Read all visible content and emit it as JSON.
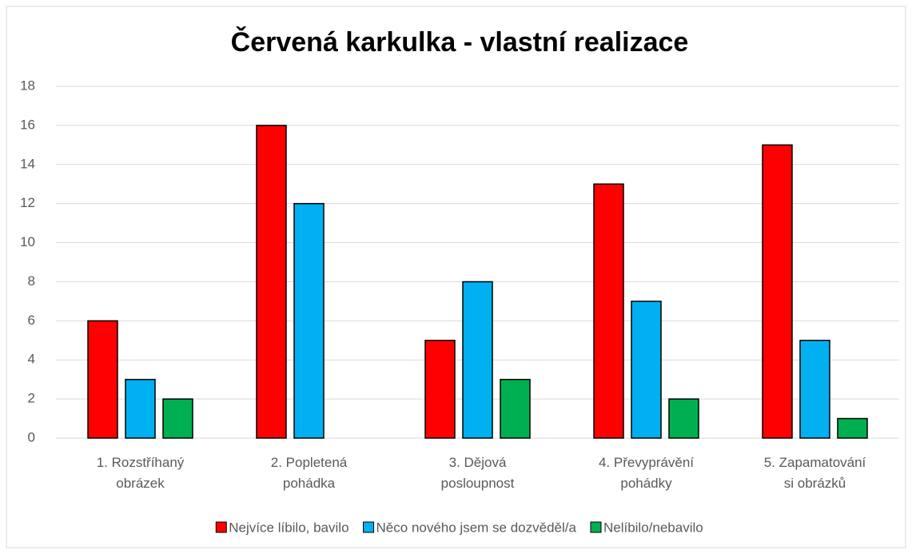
{
  "chart_data": {
    "type": "bar",
    "title": "Červená karkulka - vlastní realizace",
    "categories": [
      "1. Rozstříhaný obrázek",
      "2. Popletená pohádka",
      "3. Dějová posloupnost",
      "4. Převyprávění pohádky",
      "5. Zapamatování si obrázků"
    ],
    "series": [
      {
        "name": "Nejvíce líbilo, bavilo",
        "color": "#ff0000",
        "values": [
          6,
          16,
          5,
          13,
          15
        ]
      },
      {
        "name": "Něco nového jsem se dozvěděl/a",
        "color": "#00b0f0",
        "values": [
          3,
          12,
          8,
          7,
          5
        ]
      },
      {
        "name": "Nelíbilo/nebavilo",
        "color": "#00b050",
        "values": [
          2,
          0,
          3,
          2,
          1
        ]
      }
    ],
    "ylim": [
      0,
      18
    ],
    "yticks": [
      0,
      2,
      4,
      6,
      8,
      10,
      12,
      14,
      16,
      18
    ],
    "grid": true,
    "legend": "bottom"
  }
}
